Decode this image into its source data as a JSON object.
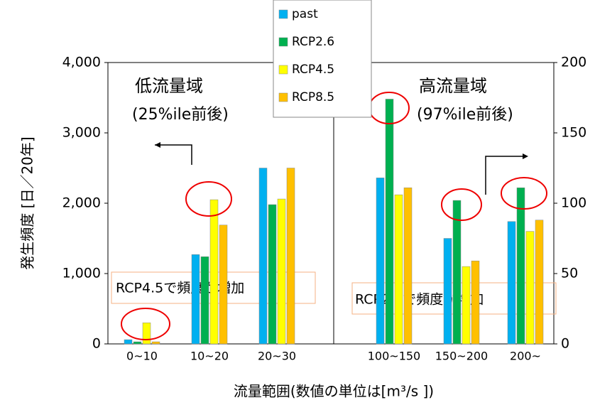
{
  "chart_data": [
    {
      "type": "bar",
      "ylabel": "発生頻度 [日／20年]",
      "xlabel": "流量範囲(数値の単位は[m³/s ])",
      "ylim": [
        0,
        4000
      ],
      "yticks": [
        0,
        {
          "value": 1000,
          "label": "1,000"
        },
        {
          "value": 2000,
          "label": "2,000"
        },
        {
          "value": 3000,
          "label": "3,000"
        },
        {
          "value": 4000,
          "label": "4,000"
        }
      ],
      "categories": [
        "0~10",
        "10~20",
        "20~30"
      ],
      "series": [
        {
          "name": "past",
          "color": "#00b0f0",
          "values": [
            60,
            1270,
            2500
          ]
        },
        {
          "name": "RCP2.6",
          "color": "#00b050",
          "values": [
            30,
            1240,
            1980
          ]
        },
        {
          "name": "RCP4.5",
          "color": "#ffff00",
          "values": [
            300,
            2050,
            2060
          ]
        },
        {
          "name": "RCP8.5",
          "color": "#ffc000",
          "values": [
            30,
            1690,
            2500
          ]
        }
      ],
      "annotations": [
        "低流量域",
        "(25%ile前後)",
        "RCP4.5で頻度が増加"
      ]
    },
    {
      "type": "bar",
      "y2lim": [
        0,
        200
      ],
      "y2ticks": [
        0,
        50,
        100,
        150,
        200
      ],
      "categories": [
        "100~150",
        "150~200",
        "200~"
      ],
      "series": [
        {
          "color": "#00b0f0",
          "axis": "y2",
          "values": [
            118,
            75,
            87
          ]
        },
        {
          "color": "#00b050",
          "axis": "y2",
          "values": [
            174,
            102,
            111
          ]
        },
        {
          "color": "#ffff00",
          "axis": "y2",
          "values": [
            106,
            55,
            80
          ]
        },
        {
          "color": "#ffc000",
          "axis": "y2",
          "values": [
            111,
            59,
            88
          ]
        }
      ],
      "annotations": [
        "高流量域",
        "(97%ile前後)",
        "RCP2.6で頻度が増加"
      ]
    }
  ]
}
